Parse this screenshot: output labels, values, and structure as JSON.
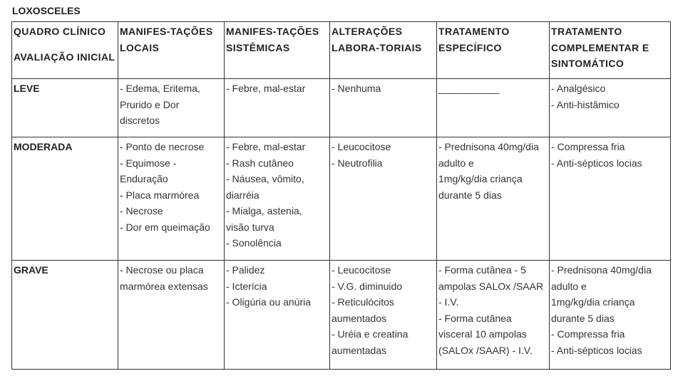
{
  "title": "LOXOSCELES",
  "headers": [
    {
      "lines": [
        "QUADRO CLÍNICO"
      ],
      "lines2": [
        "AVALIAÇÃO INICIAL"
      ]
    },
    {
      "lines": [
        "MANIFES-TAÇÕES",
        "LOCAIS"
      ]
    },
    {
      "lines": [
        "MANIFES-TAÇÕES",
        "SISTÊMICAS"
      ]
    },
    {
      "lines": [
        "ALTERAÇÕES",
        "LABORA-TORIAIS"
      ]
    },
    {
      "lines": [
        "TRATAMENTO",
        "ESPECÍFICO"
      ]
    },
    {
      "lines": [
        "TRATAMENTO",
        "COMPLEMENTAR E",
        "SINTOMÁTICO"
      ]
    }
  ],
  "rows": [
    {
      "label": "LEVE",
      "cells": [
        [
          "- Edema, Eritema,",
          "Prurido e Dor",
          "discretos"
        ],
        [
          "- Febre, mal-estar"
        ],
        [
          "- Nenhuma"
        ],
        [
          "___________"
        ],
        [
          "- Analgésico",
          "- Anti-histâmico"
        ]
      ]
    },
    {
      "label": "MODERADA",
      "cells": [
        [
          "- Ponto de necrose",
          "- Equimose -",
          "Enduração",
          "- Placa marmórea",
          "- Necrose",
          "- Dor em queimação"
        ],
        [
          "- Febre, mal-estar",
          "- Rash cutâneo",
          "- Náusea, vômito,",
          "diarréia",
          "- Mialga, astenia,",
          "visão turva",
          "- Sonolência"
        ],
        [
          "- Leucocitose",
          "- Neutrofilia"
        ],
        [
          "- Prednisona 40mg/dia",
          "adulto e",
          "1mg/kg/dia criança",
          "durante 5 dias"
        ],
        [
          "- Compressa fria",
          "- Anti-sépticos locias"
        ]
      ]
    },
    {
      "label": "GRAVE",
      "cells": [
        [
          "- Necrose ou placa",
          "marmórea extensas"
        ],
        [
          "- Palidez",
          "- Icterícia",
          "- Oligúria ou anúria"
        ],
        [
          "- Leucocitose",
          "- V.G. diminuido",
          "- Reticulócitos",
          "aumentados",
          "- Uréia e creatina",
          "aumentadas"
        ],
        [
          "- Forma cutânea - 5",
          "ampolas SALOx /SAAR",
          "- I.V.",
          "- Forma cutânea",
          "visceral 10 ampolas",
          "(SALOx /SAAR) - I.V."
        ],
        [
          "- Prednisona 40mg/dia",
          "adulto e",
          "1mg/kg/dia criança",
          "durante 5 dias",
          "- Compressa fria",
          "- Anti-sépticos locias"
        ]
      ]
    }
  ]
}
